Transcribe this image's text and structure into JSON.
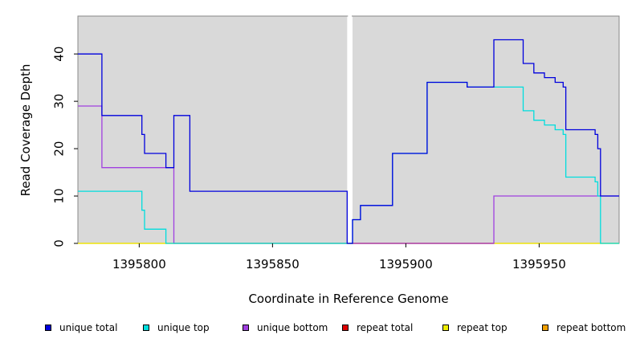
{
  "chart_data": {
    "type": "line",
    "xlabel": "Coordinate in Reference Genome",
    "ylabel": "Read Coverage Depth",
    "xlim": [
      1395777,
      1395980
    ],
    "ylim": [
      0,
      48
    ],
    "xticks": [
      1395800,
      1395850,
      1395900,
      1395950
    ],
    "yticks": [
      0,
      10,
      20,
      30,
      40
    ],
    "tick_labels_x": [
      "1395800",
      "1395850",
      "1395900",
      "1395950"
    ],
    "tick_labels_y": [
      "0",
      "10",
      "20",
      "30",
      "40"
    ],
    "grid": false,
    "background_color": "#d9d9d9",
    "gap": [
      1395878,
      1395880
    ],
    "series": [
      {
        "name": "unique total",
        "color": "#0000dd",
        "x": [
          1395777,
          1395786,
          1395786,
          1395801,
          1395801,
          1395802,
          1395802,
          1395810,
          1395810,
          1395813,
          1395813,
          1395819,
          1395819,
          1395878,
          1395878,
          1395880,
          1395880,
          1395883,
          1395883,
          1395895,
          1395895,
          1395908,
          1395908,
          1395923,
          1395923,
          1395933,
          1395933,
          1395944,
          1395944,
          1395948,
          1395948,
          1395952,
          1395952,
          1395956,
          1395956,
          1395959,
          1395959,
          1395960,
          1395960,
          1395971,
          1395971,
          1395972,
          1395972,
          1395973,
          1395973,
          1395980
        ],
        "y": [
          40,
          40,
          27,
          27,
          23,
          23,
          19,
          19,
          16,
          16,
          27,
          27,
          11,
          11,
          0,
          0,
          5,
          5,
          8,
          8,
          19,
          19,
          34,
          34,
          33,
          33,
          43,
          43,
          38,
          38,
          36,
          36,
          35,
          35,
          34,
          34,
          33,
          33,
          24,
          24,
          23,
          23,
          20,
          20,
          10,
          10
        ]
      },
      {
        "name": "unique top",
        "color": "#00dddd",
        "x": [
          1395777,
          1395801,
          1395801,
          1395802,
          1395802,
          1395810,
          1395810,
          1395878,
          1395878,
          1395880,
          1395880,
          1395883,
          1395883,
          1395895,
          1395895,
          1395908,
          1395908,
          1395923,
          1395923,
          1395944,
          1395944,
          1395948,
          1395948,
          1395952,
          1395952,
          1395956,
          1395956,
          1395959,
          1395959,
          1395960,
          1395960,
          1395971,
          1395971,
          1395972,
          1395972,
          1395973,
          1395973,
          1395980
        ],
        "y": [
          11,
          11,
          7,
          7,
          3,
          3,
          0,
          0,
          0,
          0,
          5,
          5,
          8,
          8,
          19,
          19,
          34,
          34,
          33,
          33,
          28,
          28,
          26,
          26,
          25,
          25,
          24,
          24,
          23,
          23,
          14,
          14,
          13,
          13,
          10,
          10,
          0,
          0
        ]
      },
      {
        "name": "unique bottom",
        "color": "#a040e0",
        "x": [
          1395777,
          1395786,
          1395786,
          1395810,
          1395810,
          1395813,
          1395813,
          1395878,
          1395880,
          1395933,
          1395933,
          1395980
        ],
        "y": [
          29,
          29,
          16,
          16,
          16,
          16,
          0,
          0,
          0,
          0,
          10,
          10
        ]
      },
      {
        "name": "repeat total",
        "color": "#dd0000",
        "x": [
          1395880,
          1395933
        ],
        "y": [
          0,
          0
        ]
      },
      {
        "name": "repeat top",
        "color": "#eeee00",
        "x": [
          1395777,
          1395980
        ],
        "y": [
          0,
          0
        ]
      },
      {
        "name": "repeat bottom",
        "color": "#f0a000",
        "x": [
          1395777,
          1395810,
          1395933,
          1395980
        ],
        "y": [
          0,
          0,
          0,
          0
        ]
      }
    ]
  }
}
